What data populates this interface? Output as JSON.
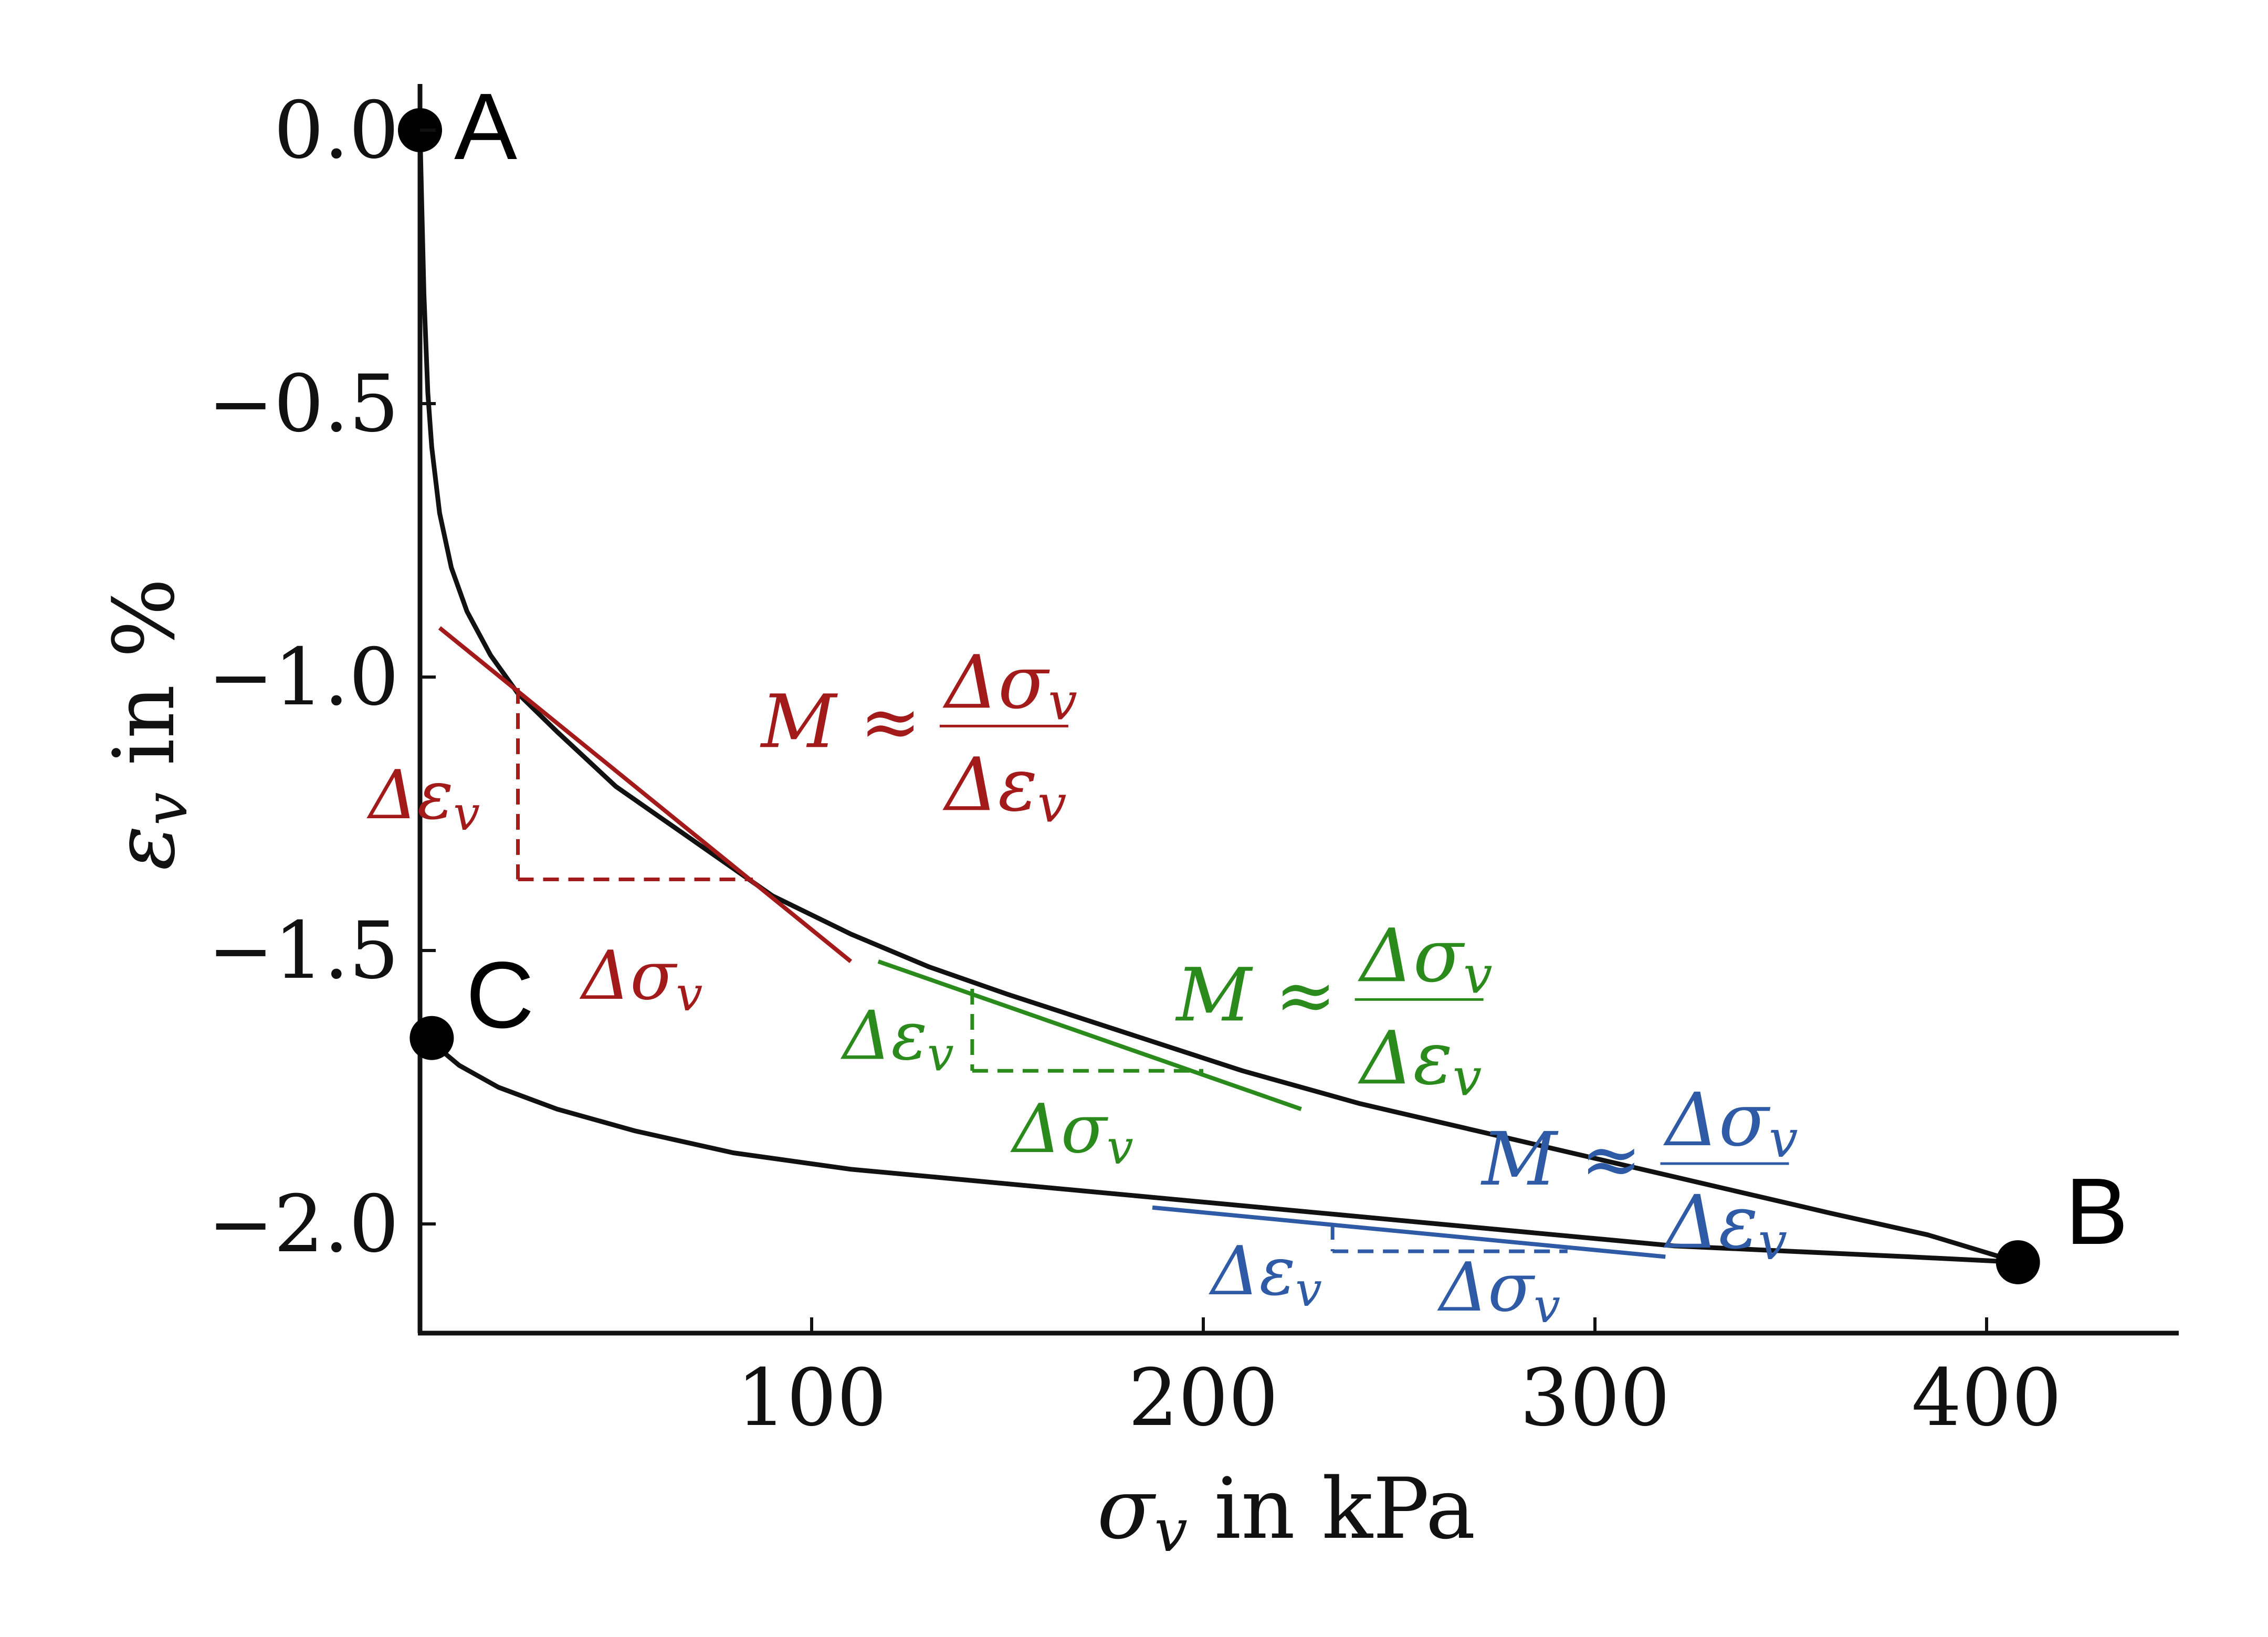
{
  "chart_data": {
    "type": "line",
    "xlabel": "σ_v in kPa",
    "ylabel": "ε_v in %",
    "xlim": [
      0,
      450
    ],
    "ylim": [
      -2.2,
      0.05
    ],
    "x_ticks": [
      100,
      200,
      300,
      400
    ],
    "x_tick_labels": [
      "100",
      "200",
      "300",
      "400"
    ],
    "y_ticks": [
      0.0,
      -0.5,
      -1.0,
      -1.5,
      -2.0
    ],
    "y_tick_labels": [
      "0.0",
      "−0.5",
      "−1.0",
      "−1.5",
      "−2.0"
    ],
    "grid": false,
    "legend": "none",
    "series": [
      {
        "role": "loading",
        "color": "#111111",
        "x": [
          0,
          0.5,
          1,
          2,
          3,
          5,
          8,
          12,
          18,
          25,
          35,
          50,
          70,
          90,
          110,
          130,
          150,
          180,
          210,
          240,
          270,
          300,
          330,
          360,
          385,
          408
        ],
        "y": [
          0.0,
          -0.15,
          -0.3,
          -0.48,
          -0.58,
          -0.7,
          -0.8,
          -0.88,
          -0.96,
          -1.03,
          -1.1,
          -1.2,
          -1.3,
          -1.4,
          -1.47,
          -1.53,
          -1.58,
          -1.65,
          -1.72,
          -1.78,
          -1.83,
          -1.88,
          -1.93,
          -1.98,
          -2.02,
          -2.07
        ]
      },
      {
        "role": "unloading",
        "color": "#111111",
        "x": [
          408,
          380,
          350,
          320,
          290,
          260,
          230,
          200,
          170,
          140,
          110,
          80,
          55,
          35,
          20,
          10,
          5,
          3
        ],
        "y": [
          -2.07,
          -2.06,
          -2.05,
          -2.04,
          -2.02,
          -2.0,
          -1.98,
          -1.96,
          -1.94,
          -1.92,
          -1.9,
          -1.87,
          -1.83,
          -1.79,
          -1.75,
          -1.71,
          -1.68,
          -1.66
        ]
      }
    ],
    "points": [
      {
        "label": "A",
        "x": 0,
        "y": 0.0
      },
      {
        "label": "B",
        "x": 408,
        "y": -2.07
      },
      {
        "label": "C",
        "x": 3,
        "y": -1.66
      }
    ],
    "tangents": [
      {
        "color": "#a31a1a",
        "line": {
          "x1": 5,
          "y1": -0.91,
          "x2": 110,
          "y2": -1.52
        },
        "step": {
          "x_start": 25,
          "y_top": -1.02,
          "x_end": 85,
          "y_bottom": -1.37
        },
        "de_label": {
          "x": 3,
          "y": -1.22
        },
        "ds_label": {
          "x": 56,
          "y": -1.55
        },
        "m_label": {
          "x": 128,
          "y": -1.08
        }
      },
      {
        "color": "#2b8a1c",
        "line": {
          "x1": 117,
          "y1": -1.52,
          "x2": 225,
          "y2": -1.79
        },
        "step": {
          "x_start": 141,
          "y_top": -1.57,
          "x_end": 200,
          "y_bottom": -1.72
        },
        "de_label": {
          "x": 124,
          "y": -1.66
        },
        "ds_label": {
          "x": 166,
          "y": -1.83
        },
        "m_label": {
          "x": 234,
          "y": -1.58
        }
      },
      {
        "color": "#2f5aa6",
        "line": {
          "x1": 187,
          "y1": -1.97,
          "x2": 318,
          "y2": -2.06
        },
        "step": {
          "x_start": 233,
          "y_top": -2.0,
          "x_end": 293,
          "y_bottom": -2.05
        },
        "de_label": {
          "x": 218,
          "y": -2.09
        },
        "ds_label": {
          "x": 275,
          "y": -2.12
        },
        "m_label": {
          "x": 312,
          "y": -1.88
        }
      }
    ],
    "annotations": {
      "delta_eps": "Δε",
      "delta_sigma": "Δσ",
      "subscript": "v",
      "m_lhs": "M ≈",
      "m_num": "Δσ",
      "m_den": "Δε"
    }
  }
}
